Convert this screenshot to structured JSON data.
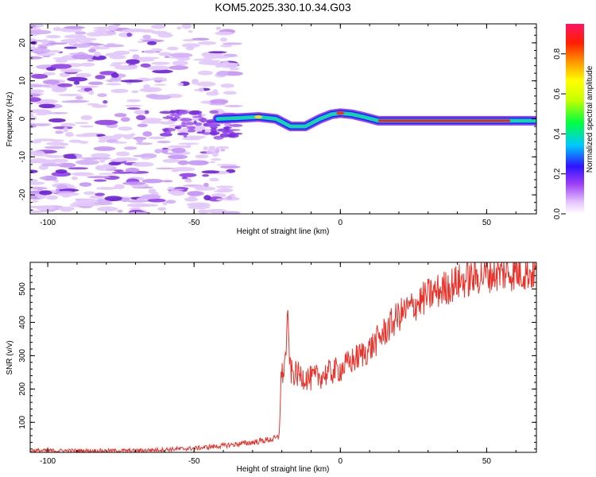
{
  "title": "KOM5.2025.330.10.34.G03",
  "colors": {
    "trace": "#e8332b",
    "axis": "#000000",
    "background": "#ffffff"
  },
  "chart_data": [
    {
      "type": "heatmap",
      "title": "KOM5.2025.330.10.34.G03",
      "xlabel": "Height of straight line (km)",
      "ylabel": "Frequency (Hz)",
      "xlim": [
        -106,
        67
      ],
      "ylim": [
        -25,
        25
      ],
      "x_ticks": [
        -100,
        -50,
        0,
        50
      ],
      "y_ticks": [
        -20,
        -10,
        0,
        10,
        20
      ],
      "colorbar": {
        "label": "Normalized spectral amplitude",
        "range": [
          0,
          0.95
        ],
        "ticks": [
          0.0,
          0.2,
          0.4,
          0.6,
          0.8
        ]
      },
      "ridge": {
        "description_units": "km vs Hz",
        "points": [
          [
            -42,
            0
          ],
          [
            -35,
            0.2
          ],
          [
            -28,
            0.5
          ],
          [
            -22,
            0
          ],
          [
            -17,
            -2
          ],
          [
            -12,
            -2
          ],
          [
            -7,
            0
          ],
          [
            -3,
            1.2
          ],
          [
            0,
            1.5
          ],
          [
            4,
            1.2
          ],
          [
            8,
            0.5
          ],
          [
            13,
            -0.5
          ],
          [
            25,
            -0.5
          ],
          [
            40,
            -0.5
          ],
          [
            55,
            -0.5
          ],
          [
            67,
            -0.5
          ]
        ]
      }
    },
    {
      "type": "line",
      "xlabel": "Height of straight line (km)",
      "ylabel": "SNR (v/v)",
      "xlim": [
        -106,
        67
      ],
      "ylim": [
        10,
        580
      ],
      "x_ticks": [
        -100,
        -50,
        0,
        50
      ],
      "y_ticks": [
        100,
        200,
        300,
        400,
        500
      ],
      "series": [
        {
          "name": "SNR",
          "trend": [
            [
              -106,
              15
            ],
            [
              -70,
              15
            ],
            [
              -50,
              22
            ],
            [
              -40,
              30
            ],
            [
              -30,
              40
            ],
            [
              -23,
              50
            ],
            [
              -21,
              55
            ],
            [
              -20.3,
              230
            ],
            [
              -19,
              270
            ],
            [
              -18,
              400
            ],
            [
              -17,
              250
            ],
            [
              -10,
              230
            ],
            [
              0,
              260
            ],
            [
              10,
              320
            ],
            [
              20,
              420
            ],
            [
              30,
              480
            ],
            [
              40,
              520
            ],
            [
              50,
              545
            ],
            [
              60,
              550
            ],
            [
              67,
              550
            ]
          ]
        }
      ]
    }
  ]
}
